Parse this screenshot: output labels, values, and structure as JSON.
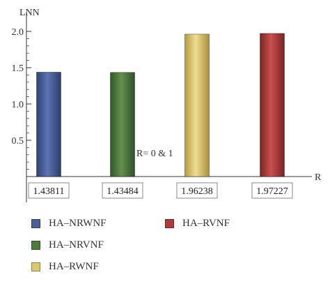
{
  "chart_data": {
    "type": "bar",
    "title": "",
    "ylabel": "LNN",
    "xlabel": "R",
    "annotation": "R= 0 & 1",
    "ylim": [
      0,
      2.0
    ],
    "yticks": [
      "0.5",
      "1.0",
      "1.5",
      "2.0"
    ],
    "yticks_values": [
      0.5,
      1.0,
      1.5,
      2.0
    ],
    "legend_position": "bottom",
    "series": [
      {
        "name": "HA–NRWNF",
        "value": 1.43811,
        "label": "1.43811",
        "color": "#4a5f9a"
      },
      {
        "name": "HA–NRVNF",
        "value": 1.43484,
        "label": "1.43484",
        "color": "#4f7a3e"
      },
      {
        "name": "HA–RWNF",
        "value": 1.96238,
        "label": "1.96238",
        "color": "#dcc670"
      },
      {
        "name": "HA–RVNF",
        "value": 1.97227,
        "label": "1.97227",
        "color": "#b03a3a"
      }
    ]
  }
}
